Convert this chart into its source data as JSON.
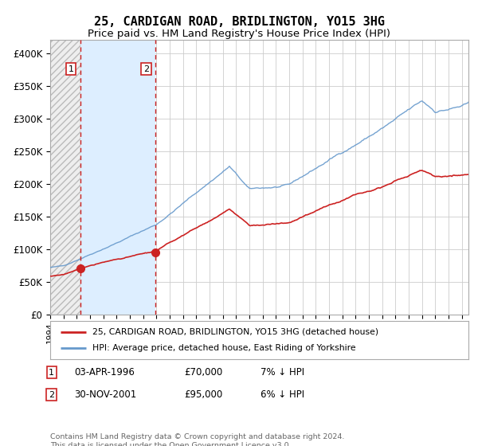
{
  "title": "25, CARDIGAN ROAD, BRIDLINGTON, YO15 3HG",
  "subtitle": "Price paid vs. HM Land Registry's House Price Index (HPI)",
  "title_fontsize": 11,
  "subtitle_fontsize": 9.5,
  "ylim": [
    0,
    420000
  ],
  "yticks": [
    0,
    50000,
    100000,
    150000,
    200000,
    250000,
    300000,
    350000,
    400000
  ],
  "ytick_labels": [
    "£0",
    "£50K",
    "£100K",
    "£150K",
    "£200K",
    "£250K",
    "£300K",
    "£350K",
    "£400K"
  ],
  "hpi_color": "#6699cc",
  "price_color": "#cc2222",
  "dot_color": "#cc2222",
  "vline_color": "#cc2222",
  "shade_color": "#ddeeff",
  "hatch_color": "#e0e0e0",
  "grid_color": "#cccccc",
  "background_color": "#ffffff",
  "legend_label_price": "25, CARDIGAN ROAD, BRIDLINGTON, YO15 3HG (detached house)",
  "legend_label_hpi": "HPI: Average price, detached house, East Riding of Yorkshire",
  "sale1_date_num": 1996.25,
  "sale1_price": 70000,
  "sale1_label": "1",
  "sale2_date_num": 2001.92,
  "sale2_price": 95000,
  "sale2_label": "2",
  "table_rows": [
    [
      "1",
      "03-APR-1996",
      "£70,000",
      "7% ↓ HPI"
    ],
    [
      "2",
      "30-NOV-2001",
      "£95,000",
      "6% ↓ HPI"
    ]
  ],
  "footer_text": "Contains HM Land Registry data © Crown copyright and database right 2024.\nThis data is licensed under the Open Government Licence v3.0.",
  "xstart": 1994.0,
  "xend": 2025.5
}
